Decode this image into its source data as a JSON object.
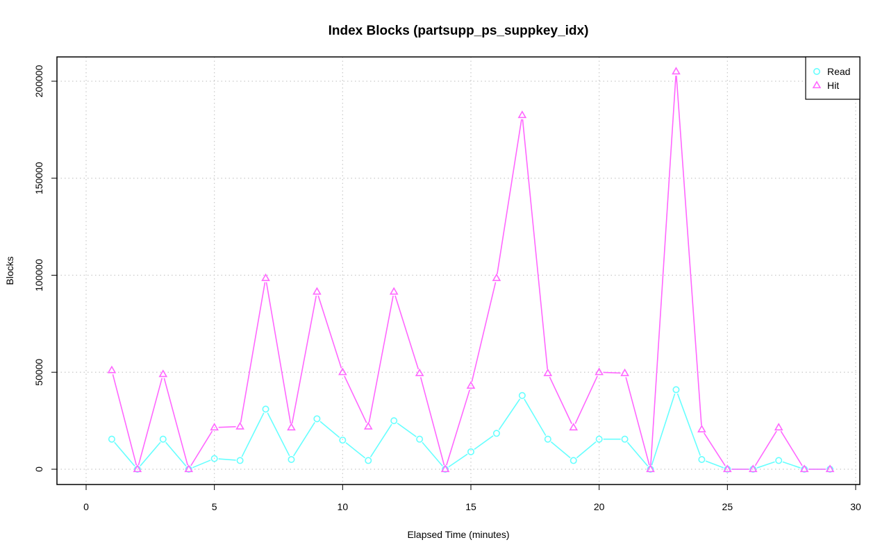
{
  "chart_data": {
    "type": "line",
    "title": "Index Blocks (partsupp_ps_suppkey_idx)",
    "xlabel": "Elapsed Time (minutes)",
    "ylabel": "Blocks",
    "xlim": [
      0,
      30
    ],
    "ylim": [
      0,
      200000
    ],
    "x_ticks": [
      "0",
      "5",
      "10",
      "15",
      "20",
      "25",
      "30"
    ],
    "y_ticks": [
      "0",
      "50000",
      "100000",
      "150000",
      "200000"
    ],
    "grid": true,
    "legend_position": "top-right",
    "x": [
      1,
      2,
      3,
      4,
      5,
      6,
      7,
      8,
      9,
      10,
      11,
      12,
      13,
      14,
      15,
      16,
      17,
      18,
      19,
      20,
      21,
      22,
      23,
      24,
      25,
      26,
      27,
      28,
      29
    ],
    "series": [
      {
        "name": "Read",
        "color": "#66ffff",
        "marker": "circle",
        "values": [
          15500,
          0,
          15500,
          0,
          5500,
          4500,
          31000,
          5000,
          26000,
          15000,
          4500,
          25000,
          15500,
          0,
          9000,
          18500,
          38000,
          15500,
          4500,
          15500,
          15500,
          0,
          41000,
          5000,
          0,
          0,
          4500,
          0,
          0
        ]
      },
      {
        "name": "Hit",
        "color": "#ff66ff",
        "marker": "triangle",
        "values": [
          51000,
          0,
          49000,
          0,
          21500,
          22000,
          98500,
          21500,
          91500,
          50000,
          22000,
          91500,
          49500,
          0,
          43000,
          98500,
          182500,
          49500,
          21500,
          50000,
          49500,
          0,
          205000,
          20500,
          0,
          0,
          21500,
          0,
          0
        ]
      }
    ]
  }
}
